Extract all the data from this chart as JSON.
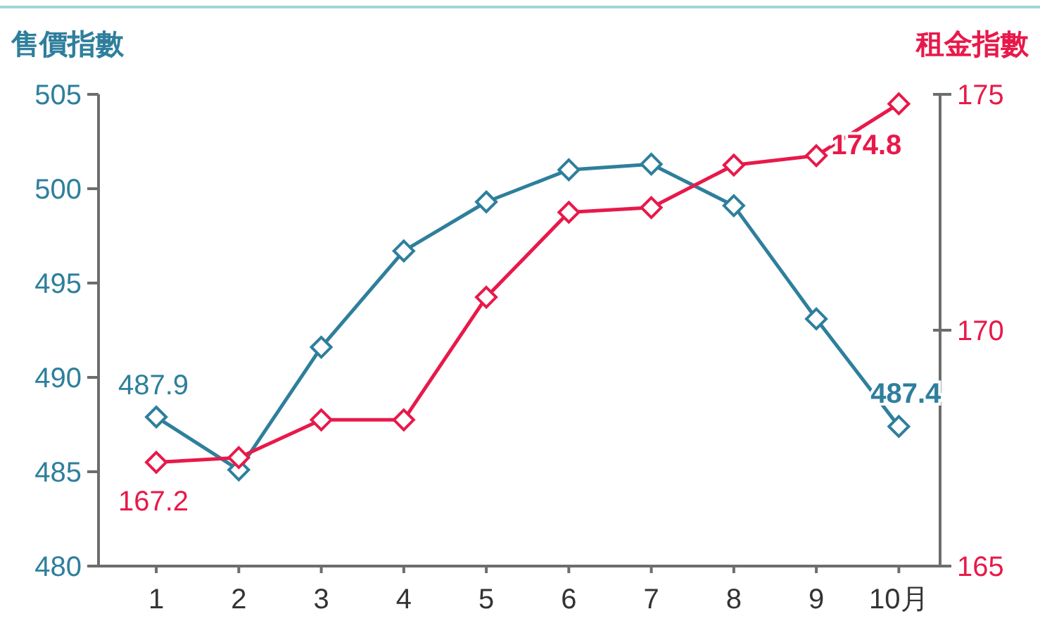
{
  "chart_data": {
    "type": "line",
    "ylabel": "售價指數",
    "y2label": "租金指數",
    "x": [
      1,
      2,
      3,
      4,
      5,
      6,
      7,
      8,
      9,
      10
    ],
    "xlim": [
      0.3,
      10.5
    ],
    "xticks": [
      1,
      2,
      3,
      4,
      5,
      6,
      7,
      8,
      9,
      {
        "value": 10,
        "label": "10月"
      }
    ],
    "ylim": [
      480,
      505
    ],
    "yticks": [
      480,
      485,
      490,
      495,
      500,
      505
    ],
    "y2lim": [
      165,
      175
    ],
    "y2ticks": [
      165,
      170,
      175
    ],
    "marker": "diamond",
    "line_style": "solid",
    "grid": false,
    "series": [
      {
        "color": "#2e7f9c",
        "values": [
          487.9,
          485.1,
          491.6,
          496.7,
          499.3,
          501.0,
          501.3,
          499.1,
          493.1,
          487.4
        ],
        "value_labels": [
          "487.9",
          null,
          null,
          null,
          null,
          null,
          null,
          null,
          null,
          "487.4"
        ]
      },
      {
        "color": "#e8194a",
        "axis": "y2",
        "values": [
          167.2,
          167.3,
          168.1,
          168.1,
          170.7,
          172.5,
          172.6,
          173.5,
          173.7,
          174.8
        ],
        "value_labels": [
          "167.2",
          null,
          null,
          null,
          null,
          null,
          null,
          null,
          null,
          "174.8"
        ]
      }
    ]
  }
}
